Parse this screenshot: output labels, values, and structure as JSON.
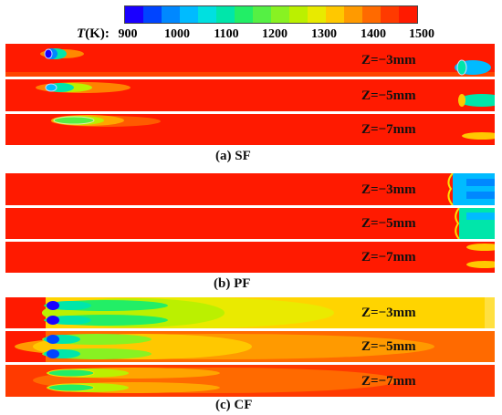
{
  "colorbar": {
    "title_var": "T",
    "title_unit": "(K):",
    "ticks": [
      "900",
      "1000",
      "1100",
      "1200",
      "1300",
      "1400",
      "1500"
    ],
    "colors": [
      "#1a00ff",
      "#0044ff",
      "#0088ff",
      "#00bbff",
      "#00e0e0",
      "#00e6aa",
      "#22ee66",
      "#55f044",
      "#88f222",
      "#bbf000",
      "#e8ea00",
      "#ffc800",
      "#ff9a00",
      "#ff6a00",
      "#ff3a00",
      "#ff1a00"
    ]
  },
  "groups": [
    {
      "caption": "(a)  SF",
      "labels": [
        "Z=−3mm",
        "Z=−5mm",
        "Z=−7mm"
      ]
    },
    {
      "caption": "(b)  PF",
      "labels": [
        "Z=−3mm",
        "Z=−5mm",
        "Z=−7mm"
      ]
    },
    {
      "caption": "(c) CF",
      "labels": [
        "Z=−3mm",
        "Z=−5mm",
        "Z=−7mm"
      ]
    }
  ]
}
